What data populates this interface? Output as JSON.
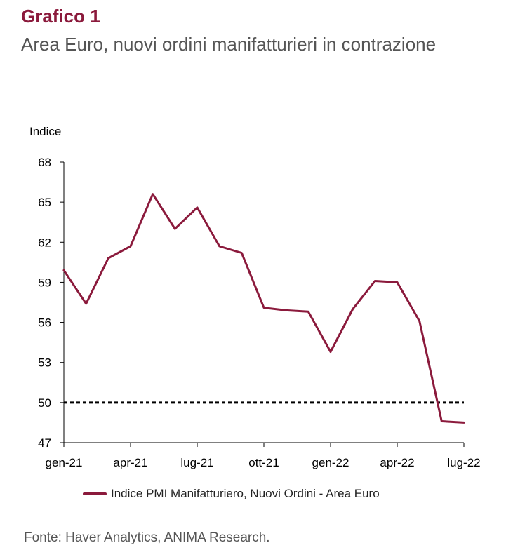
{
  "header": {
    "title": "Grafico 1",
    "subtitle": "Area Euro, nuovi ordini manifatturieri in contrazione"
  },
  "source": "Fonte: Haver Analytics, ANIMA Research.",
  "colors": {
    "series": "#8b1a3c",
    "reference": "#000000",
    "title": "#8b1a3c"
  },
  "chart_data": {
    "type": "line",
    "title": "",
    "xlabel": "",
    "ylabel": "Indice",
    "ylim": [
      47,
      68
    ],
    "yticks": [
      47,
      50,
      53,
      56,
      59,
      62,
      65,
      68
    ],
    "xticks": [
      "gen-21",
      "apr-21",
      "lug-21",
      "ott-21",
      "gen-22",
      "apr-22",
      "lug-22"
    ],
    "x": [
      "gen-21",
      "feb-21",
      "mar-21",
      "apr-21",
      "mag-21",
      "giu-21",
      "lug-21",
      "ago-21",
      "set-21",
      "ott-21",
      "nov-21",
      "dic-21",
      "gen-22",
      "feb-22",
      "mar-22",
      "apr-22",
      "mag-22",
      "giu-22",
      "lug-22"
    ],
    "series": [
      {
        "name": "Indice PMI Manifatturiero, Nuovi Ordini - Area Euro",
        "values": [
          59.9,
          57.4,
          60.8,
          61.7,
          65.6,
          63.0,
          64.6,
          61.7,
          61.2,
          57.1,
          56.9,
          56.8,
          53.8,
          57.0,
          59.1,
          59.0,
          56.1,
          48.6,
          48.5
        ]
      }
    ],
    "reference_line": {
      "value": 50,
      "style": "dashed"
    },
    "grid": false,
    "legend": "bottom"
  }
}
